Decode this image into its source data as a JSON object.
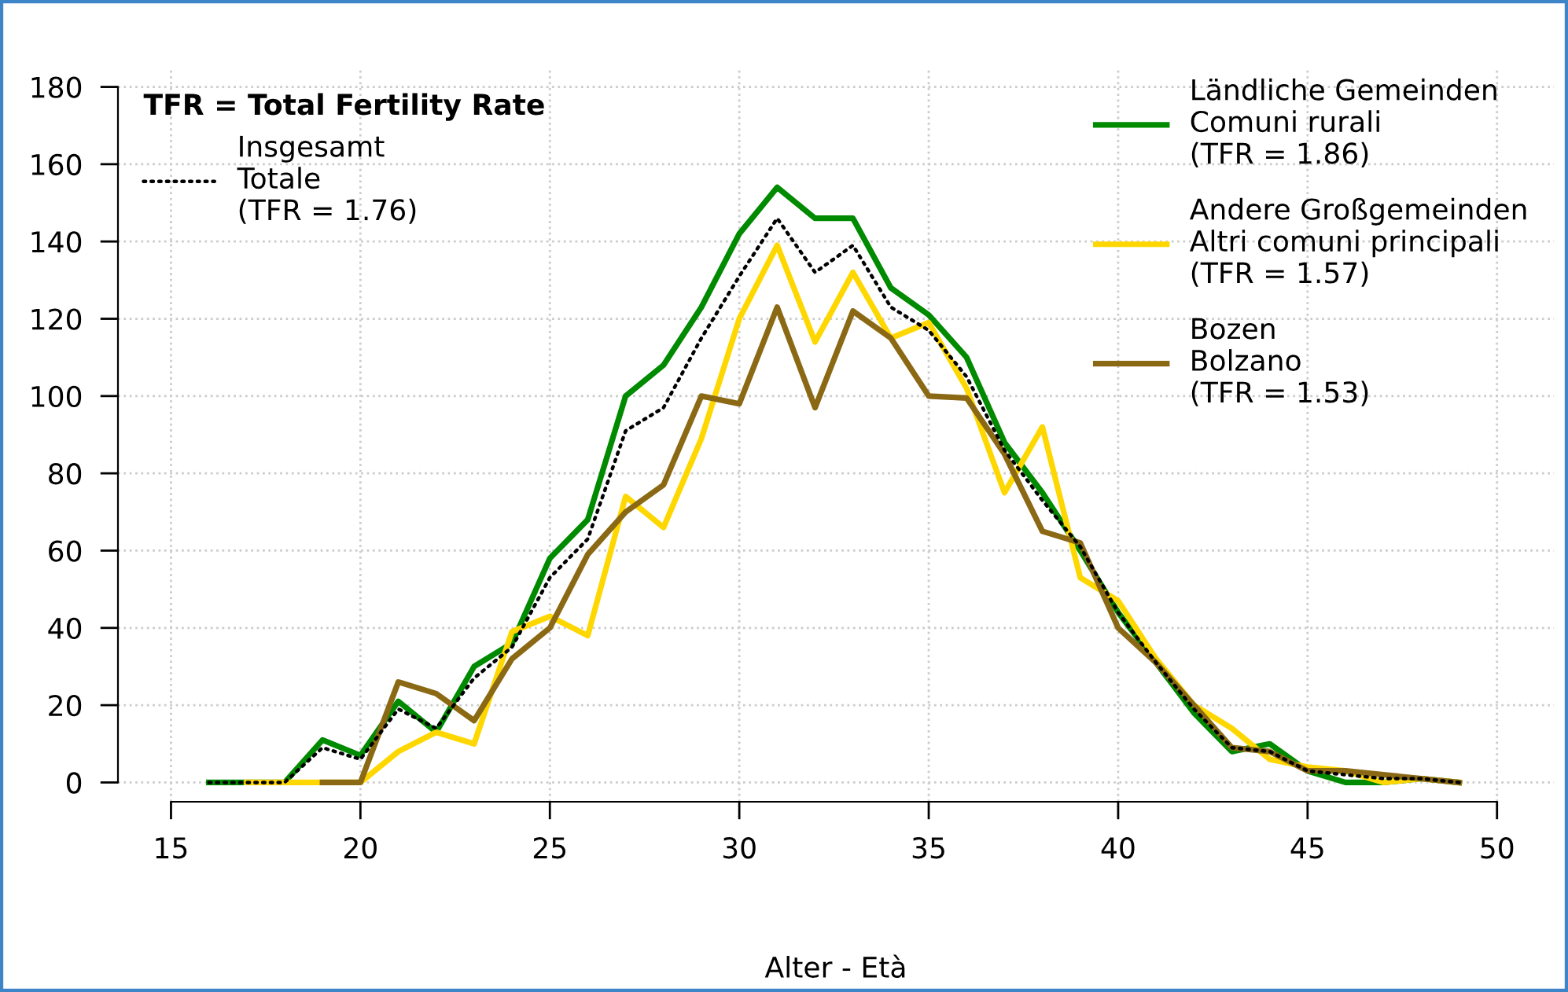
{
  "chart_data": {
    "type": "line",
    "xlabel": "Alter - Età",
    "legend_title": "TFR = Total Fertility Rate",
    "legend": "top",
    "grid": true,
    "xlim": [
      13.6,
      51.5
    ],
    "ylim": [
      -5,
      185
    ],
    "xticks": [
      15,
      20,
      25,
      30,
      35,
      40,
      45,
      50
    ],
    "yticks": [
      0,
      20,
      40,
      60,
      80,
      100,
      120,
      140,
      160,
      180
    ],
    "series": [
      {
        "name": "Insgesamt\nTotale\n(TFR = 1.76)",
        "color": "#000000",
        "line_style": "dotted",
        "x": [
          16,
          17,
          18,
          19,
          20,
          21,
          22,
          23,
          24,
          25,
          26,
          27,
          28,
          29,
          30,
          31,
          32,
          33,
          34,
          35,
          36,
          37,
          38,
          39,
          40,
          41,
          42,
          43,
          44,
          45,
          46,
          47,
          48,
          49
        ],
        "values": [
          0,
          0,
          0,
          9,
          6,
          19,
          14,
          27,
          35,
          53,
          63,
          91,
          97,
          115,
          131,
          146,
          132,
          139,
          123,
          117,
          105,
          86,
          73,
          61,
          44,
          31,
          19,
          9,
          8,
          3,
          2,
          1,
          1,
          0
        ]
      },
      {
        "name": "Ländliche Gemeinden\nComuni rurali\n(TFR = 1.86)",
        "color": "#008a00",
        "line_style": "solid",
        "x": [
          16,
          17,
          18,
          19,
          20,
          21,
          22,
          23,
          24,
          25,
          26,
          27,
          28,
          29,
          30,
          31,
          32,
          33,
          34,
          35,
          36,
          37,
          38,
          39,
          40,
          41,
          42,
          43,
          44,
          45,
          46,
          47,
          48,
          49
        ],
        "values": [
          0,
          0,
          0,
          11,
          7,
          21,
          13,
          30,
          36,
          58,
          68,
          100,
          108,
          123,
          142,
          154,
          146,
          146,
          128,
          121,
          110,
          88,
          75,
          60,
          44,
          31,
          18,
          8,
          10,
          3,
          0,
          0,
          1,
          0
        ]
      },
      {
        "name": "Andere Großgemeinden\nAltri comuni principali\n(TFR = 1.57)",
        "color": "#ffd700",
        "line_style": "solid",
        "x": [
          17,
          18,
          19,
          20,
          21,
          22,
          23,
          24,
          25,
          26,
          27,
          28,
          29,
          30,
          31,
          32,
          33,
          34,
          35,
          36,
          37,
          38,
          39,
          40,
          41,
          42,
          43,
          44,
          45,
          46,
          47,
          48,
          49
        ],
        "values": [
          0,
          0,
          0,
          0,
          8,
          13,
          10,
          39,
          43,
          38,
          74,
          66,
          89,
          120,
          139,
          114,
          132,
          115,
          119,
          102,
          75,
          92,
          53,
          47,
          32,
          20,
          14,
          6,
          4,
          3,
          0,
          1,
          0
        ]
      },
      {
        "name": "Bozen\nBolzano\n(TFR = 1.53)",
        "color": "#8b6914",
        "line_style": "solid",
        "x": [
          19,
          20,
          21,
          22,
          23,
          24,
          25,
          26,
          27,
          28,
          29,
          30,
          31,
          32,
          33,
          34,
          35,
          36,
          37,
          38,
          39,
          40,
          41,
          42,
          43,
          44,
          45,
          46,
          47,
          48,
          49
        ],
        "values": [
          0,
          0,
          26,
          23,
          16,
          32,
          40,
          59,
          70,
          77,
          100,
          98,
          123,
          97,
          122,
          115,
          100,
          99.5,
          85,
          65,
          62,
          40,
          31,
          20,
          9,
          8,
          3,
          3,
          2,
          1,
          0
        ]
      }
    ]
  }
}
